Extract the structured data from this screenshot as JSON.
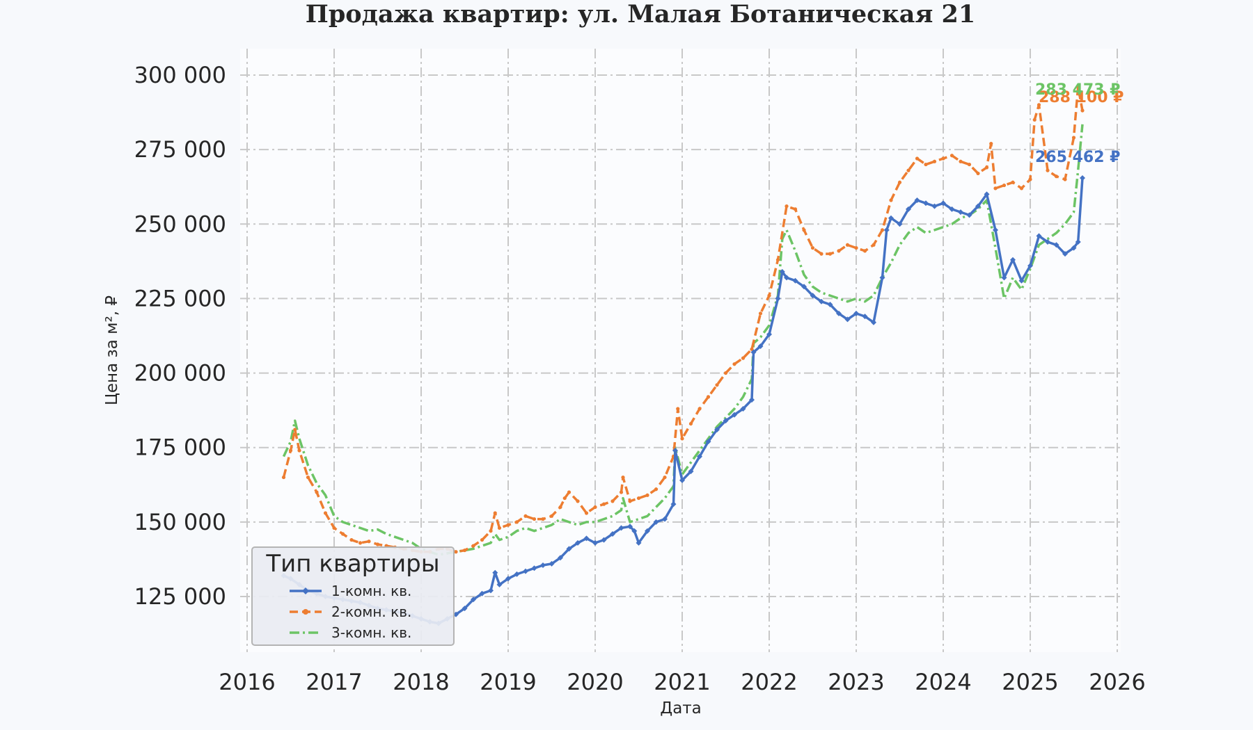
{
  "chart_data": {
    "type": "line",
    "title": "Продажа квартир: ул. Малая Ботаническая 21",
    "xlabel": "Дата",
    "ylabel": "Цена за м², ₽",
    "xlim": [
      2016,
      2026
    ],
    "ylim": [
      105000,
      310000
    ],
    "x_ticks": [
      2016,
      2017,
      2018,
      2019,
      2020,
      2021,
      2022,
      2023,
      2024,
      2025,
      2026
    ],
    "x_tick_labels": [
      "2016",
      "2017",
      "2018",
      "2019",
      "2020",
      "2021",
      "2022",
      "2023",
      "2024",
      "2025",
      "2026"
    ],
    "y_ticks": [
      125000,
      150000,
      175000,
      200000,
      225000,
      250000,
      275000,
      300000
    ],
    "y_tick_labels": [
      "125 000",
      "150 000",
      "175 000",
      "200 000",
      "225 000",
      "250 000",
      "275 000",
      "300 000"
    ],
    "grid": true,
    "legend": {
      "title": "Тип квартиры",
      "placement": "lower-left"
    },
    "series": [
      {
        "name": "1-комн. кв.",
        "color": "#4472c4",
        "dash": "solid",
        "marker": "diamond",
        "end_label": "265 462 ₽",
        "x": [
          2016.42,
          2016.5,
          2016.6,
          2016.7,
          2016.8,
          2016.9,
          2017.0,
          2017.1,
          2017.2,
          2017.3,
          2017.4,
          2017.5,
          2017.6,
          2017.7,
          2017.8,
          2017.9,
          2018.0,
          2018.1,
          2018.2,
          2018.3,
          2018.4,
          2018.5,
          2018.6,
          2018.7,
          2018.8,
          2018.85,
          2018.9,
          2019.0,
          2019.1,
          2019.2,
          2019.3,
          2019.4,
          2019.5,
          2019.6,
          2019.7,
          2019.8,
          2019.9,
          2020.0,
          2020.1,
          2020.2,
          2020.3,
          2020.4,
          2020.45,
          2020.5,
          2020.6,
          2020.7,
          2020.8,
          2020.9,
          2020.92,
          2021.0,
          2021.1,
          2021.2,
          2021.3,
          2021.4,
          2021.5,
          2021.6,
          2021.7,
          2021.8,
          2021.82,
          2021.9,
          2022.0,
          2022.1,
          2022.15,
          2022.2,
          2022.3,
          2022.4,
          2022.5,
          2022.6,
          2022.7,
          2022.8,
          2022.9,
          2023.0,
          2023.1,
          2023.2,
          2023.3,
          2023.35,
          2023.4,
          2023.5,
          2023.6,
          2023.7,
          2023.8,
          2023.9,
          2024.0,
          2024.1,
          2024.2,
          2024.3,
          2024.4,
          2024.5,
          2024.6,
          2024.7,
          2024.8,
          2024.9,
          2025.0,
          2025.1,
          2025.2,
          2025.3,
          2025.4,
          2025.5,
          2025.55,
          2025.6
        ],
        "y": [
          132000,
          131000,
          129000,
          127000,
          126000,
          125000,
          124500,
          124000,
          123500,
          123000,
          122000,
          121000,
          120500,
          120000,
          119500,
          118500,
          117500,
          116500,
          116000,
          117500,
          119000,
          121000,
          124000,
          126000,
          127000,
          133000,
          129000,
          131000,
          132500,
          133500,
          134500,
          135500,
          136000,
          138000,
          141000,
          143000,
          144500,
          143000,
          144000,
          146000,
          148000,
          148500,
          147000,
          143000,
          147000,
          150000,
          151000,
          156000,
          174000,
          164000,
          167000,
          172000,
          177000,
          181000,
          184000,
          186000,
          188000,
          191000,
          207000,
          209000,
          213000,
          225000,
          234000,
          232000,
          231000,
          229000,
          226000,
          224000,
          223000,
          220000,
          218000,
          220000,
          219000,
          217000,
          232000,
          248000,
          252000,
          250000,
          255000,
          258000,
          257000,
          256000,
          257000,
          255000,
          254000,
          253000,
          256000,
          260000,
          248000,
          232000,
          238000,
          231000,
          236000,
          246000,
          244000,
          243000,
          240000,
          242000,
          244000,
          265462
        ]
      },
      {
        "name": "2-комн. кв.",
        "color": "#ed7d31",
        "dash": "dashed",
        "marker": "dot",
        "end_label": "288 100 ₽",
        "x": [
          2016.42,
          2016.5,
          2016.55,
          2016.6,
          2016.7,
          2016.8,
          2016.9,
          2017.0,
          2017.1,
          2017.2,
          2017.3,
          2017.4,
          2017.5,
          2017.6,
          2017.7,
          2017.8,
          2017.9,
          2018.0,
          2018.1,
          2018.2,
          2018.3,
          2018.4,
          2018.5,
          2018.6,
          2018.7,
          2018.8,
          2018.85,
          2018.9,
          2019.0,
          2019.1,
          2019.2,
          2019.3,
          2019.4,
          2019.5,
          2019.6,
          2019.65,
          2019.7,
          2019.8,
          2019.9,
          2020.0,
          2020.1,
          2020.2,
          2020.3,
          2020.32,
          2020.4,
          2020.5,
          2020.6,
          2020.7,
          2020.8,
          2020.9,
          2020.95,
          2021.0,
          2021.1,
          2021.2,
          2021.3,
          2021.4,
          2021.5,
          2021.6,
          2021.7,
          2021.8,
          2021.9,
          2022.0,
          2022.1,
          2022.2,
          2022.3,
          2022.4,
          2022.5,
          2022.6,
          2022.7,
          2022.8,
          2022.9,
          2023.0,
          2023.1,
          2023.2,
          2023.3,
          2023.4,
          2023.5,
          2023.6,
          2023.7,
          2023.8,
          2023.9,
          2024.0,
          2024.1,
          2024.2,
          2024.3,
          2024.4,
          2024.5,
          2024.55,
          2024.6,
          2024.7,
          2024.8,
          2024.9,
          2025.0,
          2025.05,
          2025.1,
          2025.2,
          2025.3,
          2025.4,
          2025.5,
          2025.55,
          2025.6
        ],
        "y": [
          165000,
          174000,
          181000,
          174000,
          165000,
          160000,
          153000,
          148000,
          146000,
          144000,
          143000,
          143500,
          142500,
          142000,
          141500,
          141000,
          140500,
          140000,
          140000,
          141000,
          141000,
          140000,
          140500,
          142000,
          144000,
          147000,
          153000,
          148000,
          149000,
          150000,
          152000,
          151000,
          151000,
          152000,
          155000,
          158000,
          160000,
          157000,
          153000,
          155000,
          156000,
          157000,
          160000,
          165000,
          157000,
          158000,
          159000,
          161000,
          165000,
          172000,
          188000,
          178000,
          183000,
          188000,
          192000,
          196000,
          200000,
          203000,
          205000,
          208000,
          220000,
          226000,
          238000,
          256000,
          255000,
          248000,
          242000,
          240000,
          240000,
          241000,
          243000,
          242000,
          241000,
          243000,
          248000,
          258000,
          264000,
          268000,
          272000,
          270000,
          271000,
          272000,
          273000,
          271000,
          270000,
          267000,
          269000,
          277000,
          262000,
          263000,
          264000,
          262000,
          265000,
          285000,
          290000,
          268000,
          266000,
          265000,
          279000,
          296000,
          288100
        ]
      },
      {
        "name": "3-комн. кв.",
        "color": "#6cc465",
        "dash": "dashdot",
        "marker": "none",
        "end_label": "283 473 ₽",
        "x": [
          2016.42,
          2016.5,
          2016.55,
          2016.6,
          2016.7,
          2016.8,
          2016.9,
          2017.0,
          2017.1,
          2017.2,
          2017.3,
          2017.4,
          2017.5,
          2017.6,
          2017.7,
          2017.8,
          2017.9,
          2018.0,
          2018.1,
          2018.2,
          2018.3,
          2018.4,
          2018.5,
          2018.6,
          2018.7,
          2018.8,
          2018.85,
          2018.9,
          2019.0,
          2019.1,
          2019.2,
          2019.3,
          2019.4,
          2019.5,
          2019.6,
          2019.7,
          2019.8,
          2019.9,
          2020.0,
          2020.1,
          2020.2,
          2020.3,
          2020.32,
          2020.4,
          2020.5,
          2020.6,
          2020.7,
          2020.8,
          2020.9,
          2020.92,
          2021.0,
          2021.1,
          2021.2,
          2021.3,
          2021.4,
          2021.5,
          2021.6,
          2021.7,
          2021.8,
          2021.82,
          2021.9,
          2022.0,
          2022.1,
          2022.15,
          2022.2,
          2022.3,
          2022.4,
          2022.5,
          2022.6,
          2022.7,
          2022.8,
          2022.9,
          2023.0,
          2023.1,
          2023.2,
          2023.3,
          2023.4,
          2023.5,
          2023.6,
          2023.7,
          2023.8,
          2023.9,
          2024.0,
          2024.1,
          2024.2,
          2024.3,
          2024.4,
          2024.5,
          2024.6,
          2024.7,
          2024.8,
          2024.9,
          2025.0,
          2025.1,
          2025.2,
          2025.3,
          2025.4,
          2025.5,
          2025.55,
          2025.6
        ],
        "y": [
          172000,
          177000,
          184000,
          178000,
          169000,
          163000,
          159000,
          152000,
          150000,
          149000,
          148000,
          147000,
          147500,
          146000,
          145000,
          144000,
          143000,
          141000,
          140000,
          139000,
          139500,
          140000,
          140500,
          141000,
          142000,
          143000,
          146000,
          144000,
          145000,
          147000,
          148000,
          147000,
          148000,
          149000,
          151000,
          150000,
          149000,
          150000,
          150000,
          151000,
          152000,
          154000,
          158000,
          150000,
          151000,
          152000,
          155000,
          158000,
          162000,
          175000,
          166000,
          170000,
          174000,
          178000,
          182000,
          185000,
          188000,
          192000,
          198000,
          210000,
          212000,
          216000,
          226000,
          245000,
          248000,
          241000,
          233000,
          229000,
          227000,
          226000,
          225000,
          224000,
          225000,
          224000,
          226000,
          232000,
          237000,
          243000,
          247000,
          249000,
          247000,
          248000,
          249000,
          250000,
          252000,
          253000,
          255000,
          258000,
          242000,
          225000,
          232000,
          228000,
          235000,
          243000,
          245000,
          247000,
          250000,
          254000,
          268000,
          283473
        ]
      }
    ]
  }
}
